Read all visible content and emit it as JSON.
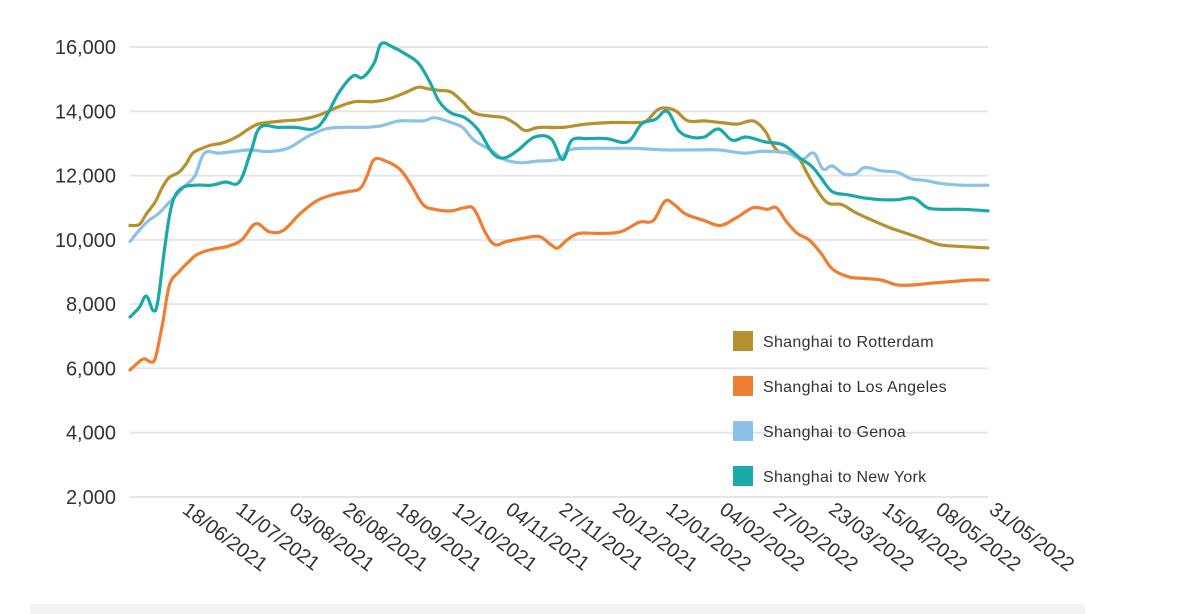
{
  "chart_data": {
    "type": "line",
    "title": "",
    "xlabel": "",
    "ylabel": "",
    "ylim": [
      2000,
      16000
    ],
    "yticks": [
      2000,
      4000,
      6000,
      8000,
      10000,
      12000,
      14000,
      16000
    ],
    "ytick_labels": [
      "2,000",
      "4,000",
      "6,000",
      "8,000",
      "10,000",
      "12,000",
      "14,000",
      "16,000"
    ],
    "x_range": [
      "27/05/2021",
      "31/05/2022"
    ],
    "xtick_labels": [
      "18/06/2021",
      "11/07/2021",
      "03/08/2021",
      "26/08/2021",
      "18/09/2021",
      "12/10/2021",
      "04/11/2021",
      "27/11/2021",
      "20/12/2021",
      "12/01/2022",
      "04/02/2022",
      "27/02/2022",
      "23/03/2022",
      "15/04/2022",
      "08/05/2022",
      "31/05/2022"
    ],
    "grid": true,
    "legend_position": "bottom-right",
    "series": [
      {
        "name": "Shanghai to Rotterdam",
        "color": "#b5912f",
        "points": [
          [
            "27/05/2021",
            10450
          ],
          [
            "31/05/2021",
            10480
          ],
          [
            "03/06/2021",
            10800
          ],
          [
            "07/06/2021",
            11200
          ],
          [
            "10/06/2021",
            11650
          ],
          [
            "13/06/2021",
            11950
          ],
          [
            "17/06/2021",
            12100
          ],
          [
            "20/06/2021",
            12350
          ],
          [
            "23/06/2021",
            12700
          ],
          [
            "27/06/2021",
            12850
          ],
          [
            "01/07/2021",
            12950
          ],
          [
            "05/07/2021",
            13000
          ],
          [
            "09/07/2021",
            13100
          ],
          [
            "13/07/2021",
            13250
          ],
          [
            "17/07/2021",
            13450
          ],
          [
            "21/07/2021",
            13600
          ],
          [
            "25/07/2021",
            13650
          ],
          [
            "01/08/2021",
            13700
          ],
          [
            "09/08/2021",
            13750
          ],
          [
            "17/08/2021",
            13900
          ],
          [
            "25/08/2021",
            14150
          ],
          [
            "01/09/2021",
            14300
          ],
          [
            "09/09/2021",
            14300
          ],
          [
            "16/09/2021",
            14400
          ],
          [
            "23/09/2021",
            14600
          ],
          [
            "28/09/2021",
            14750
          ],
          [
            "02/10/2021",
            14700
          ],
          [
            "07/10/2021",
            14650
          ],
          [
            "12/10/2021",
            14600
          ],
          [
            "17/10/2021",
            14300
          ],
          [
            "22/10/2021",
            13950
          ],
          [
            "29/10/2021",
            13850
          ],
          [
            "04/11/2021",
            13800
          ],
          [
            "09/11/2021",
            13600
          ],
          [
            "13/11/2021",
            13400
          ],
          [
            "19/11/2021",
            13500
          ],
          [
            "29/11/2021",
            13500
          ],
          [
            "09/12/2021",
            13600
          ],
          [
            "20/12/2021",
            13650
          ],
          [
            "30/12/2021",
            13650
          ],
          [
            "04/01/2022",
            13700
          ],
          [
            "09/01/2022",
            14050
          ],
          [
            "13/01/2022",
            14100
          ],
          [
            "17/01/2022",
            14000
          ],
          [
            "22/01/2022",
            13700
          ],
          [
            "29/01/2022",
            13700
          ],
          [
            "05/02/2022",
            13650
          ],
          [
            "12/02/2022",
            13600
          ],
          [
            "19/02/2022",
            13700
          ],
          [
            "24/02/2022",
            13400
          ],
          [
            "27/02/2022",
            13000
          ],
          [
            "02/03/2022",
            12750
          ],
          [
            "07/03/2022",
            12700
          ],
          [
            "11/03/2022",
            12500
          ],
          [
            "14/03/2022",
            12100
          ],
          [
            "18/03/2022",
            11600
          ],
          [
            "23/03/2022",
            11150
          ],
          [
            "29/03/2022",
            11100
          ],
          [
            "04/04/2022",
            10850
          ],
          [
            "10/04/2022",
            10650
          ],
          [
            "18/04/2022",
            10400
          ],
          [
            "26/04/2022",
            10200
          ],
          [
            "04/05/2022",
            10000
          ],
          [
            "10/05/2022",
            9850
          ],
          [
            "18/05/2022",
            9800
          ],
          [
            "31/05/2022",
            9750
          ]
        ]
      },
      {
        "name": "Shanghai to Los Angeles",
        "color": "#ef7d32",
        "points": [
          [
            "27/05/2021",
            5950
          ],
          [
            "30/05/2021",
            6150
          ],
          [
            "02/06/2021",
            6300
          ],
          [
            "05/06/2021",
            6200
          ],
          [
            "07/06/2021",
            6350
          ],
          [
            "10/06/2021",
            7400
          ],
          [
            "13/06/2021",
            8600
          ],
          [
            "17/06/2021",
            9000
          ],
          [
            "21/06/2021",
            9300
          ],
          [
            "25/06/2021",
            9550
          ],
          [
            "01/07/2021",
            9700
          ],
          [
            "08/07/2021",
            9800
          ],
          [
            "14/07/2021",
            10000
          ],
          [
            "20/07/2021",
            10500
          ],
          [
            "26/07/2021",
            10250
          ],
          [
            "01/08/2021",
            10300
          ],
          [
            "08/08/2021",
            10800
          ],
          [
            "15/08/2021",
            11200
          ],
          [
            "22/08/2021",
            11400
          ],
          [
            "29/08/2021",
            11500
          ],
          [
            "03/09/2021",
            11600
          ],
          [
            "06/09/2021",
            12000
          ],
          [
            "09/09/2021",
            12500
          ],
          [
            "14/09/2021",
            12450
          ],
          [
            "20/09/2021",
            12200
          ],
          [
            "25/09/2021",
            11700
          ],
          [
            "30/09/2021",
            11100
          ],
          [
            "05/10/2021",
            10950
          ],
          [
            "12/10/2021",
            10900
          ],
          [
            "18/10/2021",
            11000
          ],
          [
            "22/10/2021",
            10950
          ],
          [
            "27/10/2021",
            10200
          ],
          [
            "31/10/2021",
            9850
          ],
          [
            "05/11/2021",
            9950
          ],
          [
            "12/11/2021",
            10050
          ],
          [
            "19/11/2021",
            10100
          ],
          [
            "24/11/2021",
            9850
          ],
          [
            "27/11/2021",
            9750
          ],
          [
            "01/12/2021",
            10000
          ],
          [
            "06/12/2021",
            10200
          ],
          [
            "15/12/2021",
            10200
          ],
          [
            "24/12/2021",
            10250
          ],
          [
            "01/01/2022",
            10550
          ],
          [
            "07/01/2022",
            10600
          ],
          [
            "12/01/2022",
            11200
          ],
          [
            "16/01/2022",
            11100
          ],
          [
            "21/01/2022",
            10800
          ],
          [
            "29/01/2022",
            10600
          ],
          [
            "05/02/2022",
            10450
          ],
          [
            "12/02/2022",
            10700
          ],
          [
            "19/02/2022",
            11000
          ],
          [
            "25/02/2022",
            10950
          ],
          [
            "01/03/2022",
            11000
          ],
          [
            "05/03/2022",
            10600
          ],
          [
            "10/03/2022",
            10200
          ],
          [
            "15/03/2022",
            10000
          ],
          [
            "20/03/2022",
            9600
          ],
          [
            "25/03/2022",
            9100
          ],
          [
            "01/04/2022",
            8850
          ],
          [
            "08/04/2022",
            8800
          ],
          [
            "15/04/2022",
            8750
          ],
          [
            "22/04/2022",
            8600
          ],
          [
            "29/04/2022",
            8600
          ],
          [
            "06/05/2022",
            8650
          ],
          [
            "15/05/2022",
            8700
          ],
          [
            "24/05/2022",
            8750
          ],
          [
            "31/05/2022",
            8750
          ]
        ]
      },
      {
        "name": "Shanghai to Genoa",
        "color": "#8ec1e8",
        "points": [
          [
            "27/05/2021",
            9950
          ],
          [
            "31/05/2021",
            10300
          ],
          [
            "04/06/2021",
            10600
          ],
          [
            "08/06/2021",
            10800
          ],
          [
            "12/06/2021",
            11100
          ],
          [
            "16/06/2021",
            11400
          ],
          [
            "20/06/2021",
            11700
          ],
          [
            "24/06/2021",
            12000
          ],
          [
            "28/06/2021",
            12700
          ],
          [
            "04/07/2021",
            12700
          ],
          [
            "11/07/2021",
            12750
          ],
          [
            "18/07/2021",
            12800
          ],
          [
            "25/07/2021",
            12750
          ],
          [
            "03/08/2021",
            12850
          ],
          [
            "11/08/2021",
            13200
          ],
          [
            "19/08/2021",
            13450
          ],
          [
            "27/08/2021",
            13500
          ],
          [
            "05/09/2021",
            13500
          ],
          [
            "12/09/2021",
            13550
          ],
          [
            "20/09/2021",
            13700
          ],
          [
            "30/09/2021",
            13700
          ],
          [
            "05/10/2021",
            13800
          ],
          [
            "12/10/2021",
            13650
          ],
          [
            "17/10/2021",
            13500
          ],
          [
            "22/10/2021",
            13100
          ],
          [
            "29/10/2021",
            12800
          ],
          [
            "04/11/2021",
            12500
          ],
          [
            "11/11/2021",
            12400
          ],
          [
            "18/11/2021",
            12450
          ],
          [
            "27/11/2021",
            12500
          ],
          [
            "02/12/2021",
            12800
          ],
          [
            "10/12/2021",
            12850
          ],
          [
            "20/12/2021",
            12850
          ],
          [
            "30/12/2021",
            12850
          ],
          [
            "12/01/2022",
            12800
          ],
          [
            "26/01/2022",
            12800
          ],
          [
            "04/02/2022",
            12800
          ],
          [
            "15/02/2022",
            12700
          ],
          [
            "22/02/2022",
            12750
          ],
          [
            "27/02/2022",
            12750
          ],
          [
            "06/03/2022",
            12700
          ],
          [
            "12/03/2022",
            12500
          ],
          [
            "17/03/2022",
            12700
          ],
          [
            "21/03/2022",
            12200
          ],
          [
            "25/03/2022",
            12300
          ],
          [
            "30/03/2022",
            12050
          ],
          [
            "04/04/2022",
            12050
          ],
          [
            "08/04/2022",
            12250
          ],
          [
            "15/04/2022",
            12150
          ],
          [
            "22/04/2022",
            12100
          ],
          [
            "28/04/2022",
            11900
          ],
          [
            "04/05/2022",
            11850
          ],
          [
            "11/05/2022",
            11750
          ],
          [
            "20/05/2022",
            11700
          ],
          [
            "31/05/2022",
            11700
          ]
        ]
      },
      {
        "name": "Shanghai to New York",
        "color": "#1aa9a8",
        "points": [
          [
            "27/05/2021",
            7600
          ],
          [
            "31/05/2021",
            7900
          ],
          [
            "03/06/2021",
            8250
          ],
          [
            "06/06/2021",
            7800
          ],
          [
            "08/06/2021",
            8100
          ],
          [
            "11/06/2021",
            9800
          ],
          [
            "14/06/2021",
            11100
          ],
          [
            "18/06/2021",
            11600
          ],
          [
            "24/06/2021",
            11700
          ],
          [
            "01/07/2021",
            11700
          ],
          [
            "07/07/2021",
            11800
          ],
          [
            "13/07/2021",
            11800
          ],
          [
            "18/07/2021",
            12750
          ],
          [
            "22/07/2021",
            13500
          ],
          [
            "30/07/2021",
            13500
          ],
          [
            "06/08/2021",
            13500
          ],
          [
            "14/08/2021",
            13450
          ],
          [
            "19/08/2021",
            13800
          ],
          [
            "25/08/2021",
            14600
          ],
          [
            "31/08/2021",
            15100
          ],
          [
            "04/09/2021",
            15050
          ],
          [
            "09/09/2021",
            15500
          ],
          [
            "12/09/2021",
            16100
          ],
          [
            "17/09/2021",
            16000
          ],
          [
            "22/09/2021",
            15800
          ],
          [
            "28/09/2021",
            15500
          ],
          [
            "03/10/2021",
            14900
          ],
          [
            "07/10/2021",
            14300
          ],
          [
            "12/10/2021",
            13950
          ],
          [
            "18/10/2021",
            13800
          ],
          [
            "24/10/2021",
            13400
          ],
          [
            "30/10/2021",
            12700
          ],
          [
            "04/11/2021",
            12550
          ],
          [
            "10/11/2021",
            12800
          ],
          [
            "17/11/2021",
            13200
          ],
          [
            "24/11/2021",
            13150
          ],
          [
            "29/11/2021",
            12500
          ],
          [
            "03/12/2021",
            13100
          ],
          [
            "10/12/2021",
            13150
          ],
          [
            "18/12/2021",
            13150
          ],
          [
            "27/12/2021",
            13050
          ],
          [
            "02/01/2022",
            13600
          ],
          [
            "08/01/2022",
            13750
          ],
          [
            "13/01/2022",
            14000
          ],
          [
            "18/01/2022",
            13400
          ],
          [
            "23/01/2022",
            13200
          ],
          [
            "29/01/2022",
            13200
          ],
          [
            "04/02/2022",
            13450
          ],
          [
            "10/02/2022",
            13100
          ],
          [
            "16/02/2022",
            13200
          ],
          [
            "24/02/2022",
            13050
          ],
          [
            "04/03/2022",
            12950
          ],
          [
            "11/03/2022",
            12550
          ],
          [
            "16/03/2022",
            12300
          ],
          [
            "20/03/2022",
            11950
          ],
          [
            "25/03/2022",
            11500
          ],
          [
            "01/04/2022",
            11400
          ],
          [
            "08/04/2022",
            11300
          ],
          [
            "15/04/2022",
            11250
          ],
          [
            "22/04/2022",
            11250
          ],
          [
            "29/04/2022",
            11300
          ],
          [
            "05/05/2022",
            11000
          ],
          [
            "11/05/2022",
            10950
          ],
          [
            "20/05/2022",
            10950
          ],
          [
            "31/05/2022",
            10900
          ]
        ]
      }
    ]
  }
}
